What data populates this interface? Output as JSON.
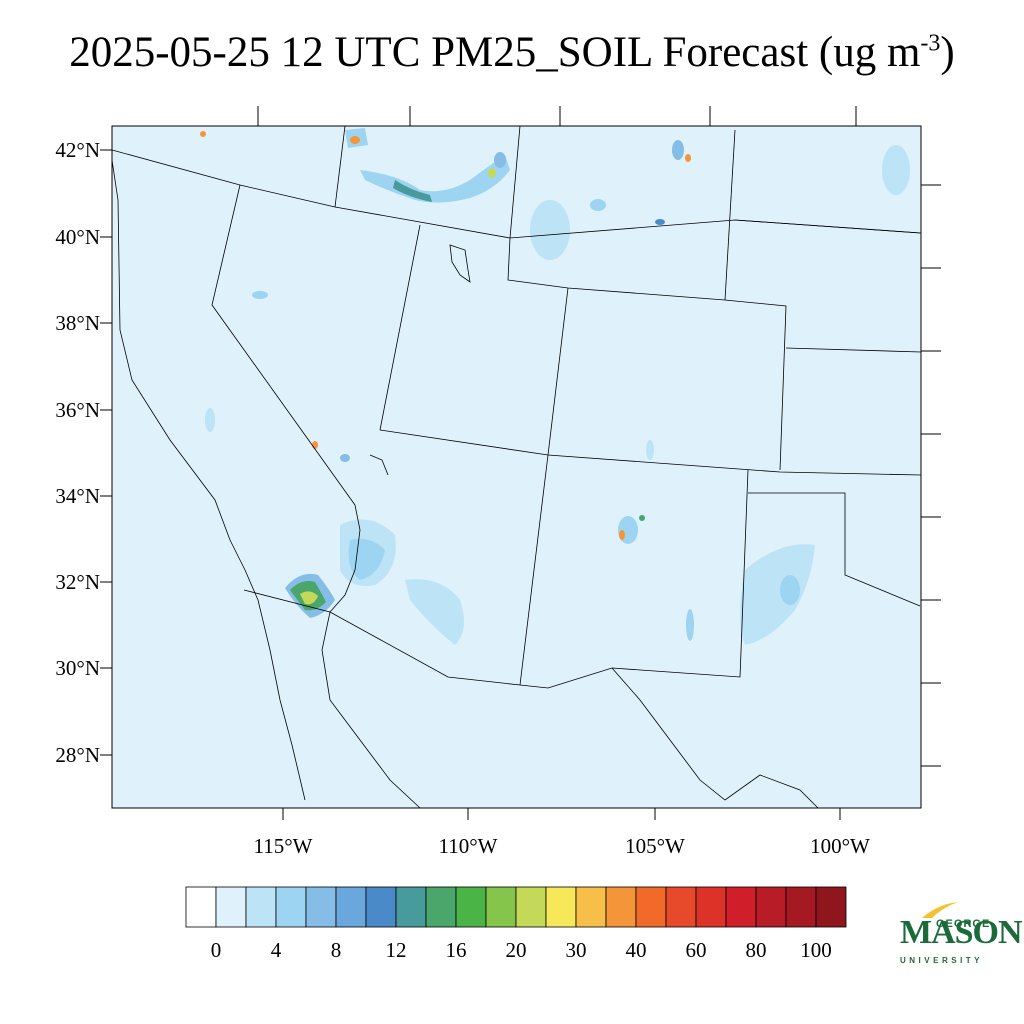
{
  "title": {
    "main": "2025-05-25 12 UTC PM25_SOIL Forecast (ug m",
    "sup": "-3",
    "close": ")"
  },
  "map": {
    "background_color": "#dff1fb",
    "lat_labels": [
      "42°N",
      "40°N",
      "38°N",
      "36°N",
      "34°N",
      "32°N",
      "30°N",
      "28°N"
    ],
    "lon_labels": [
      "115°W",
      "110°W",
      "105°W",
      "100°W"
    ]
  },
  "colorbar": {
    "colors": [
      "#ffffff",
      "#dff1fb",
      "#bde3f7",
      "#9dd4f2",
      "#85bde6",
      "#6aa7dc",
      "#4a8ac8",
      "#479b9d",
      "#4aa66b",
      "#4bb447",
      "#86c54b",
      "#c4d957",
      "#f7e85a",
      "#f7be49",
      "#f4953a",
      "#f26a2a",
      "#e74a2a",
      "#dd3228",
      "#d01f2a",
      "#b81c26",
      "#a51a22",
      "#8f161c"
    ],
    "labels": [
      "0",
      "4",
      "8",
      "12",
      "16",
      "20",
      "30",
      "40",
      "60",
      "80",
      "100"
    ]
  },
  "logo": {
    "george": "GEORGE",
    "mason": "MASON",
    "university": "UNIVERSITY",
    "color": "#1b6b3a",
    "swoosh_color": "#f2c232"
  }
}
